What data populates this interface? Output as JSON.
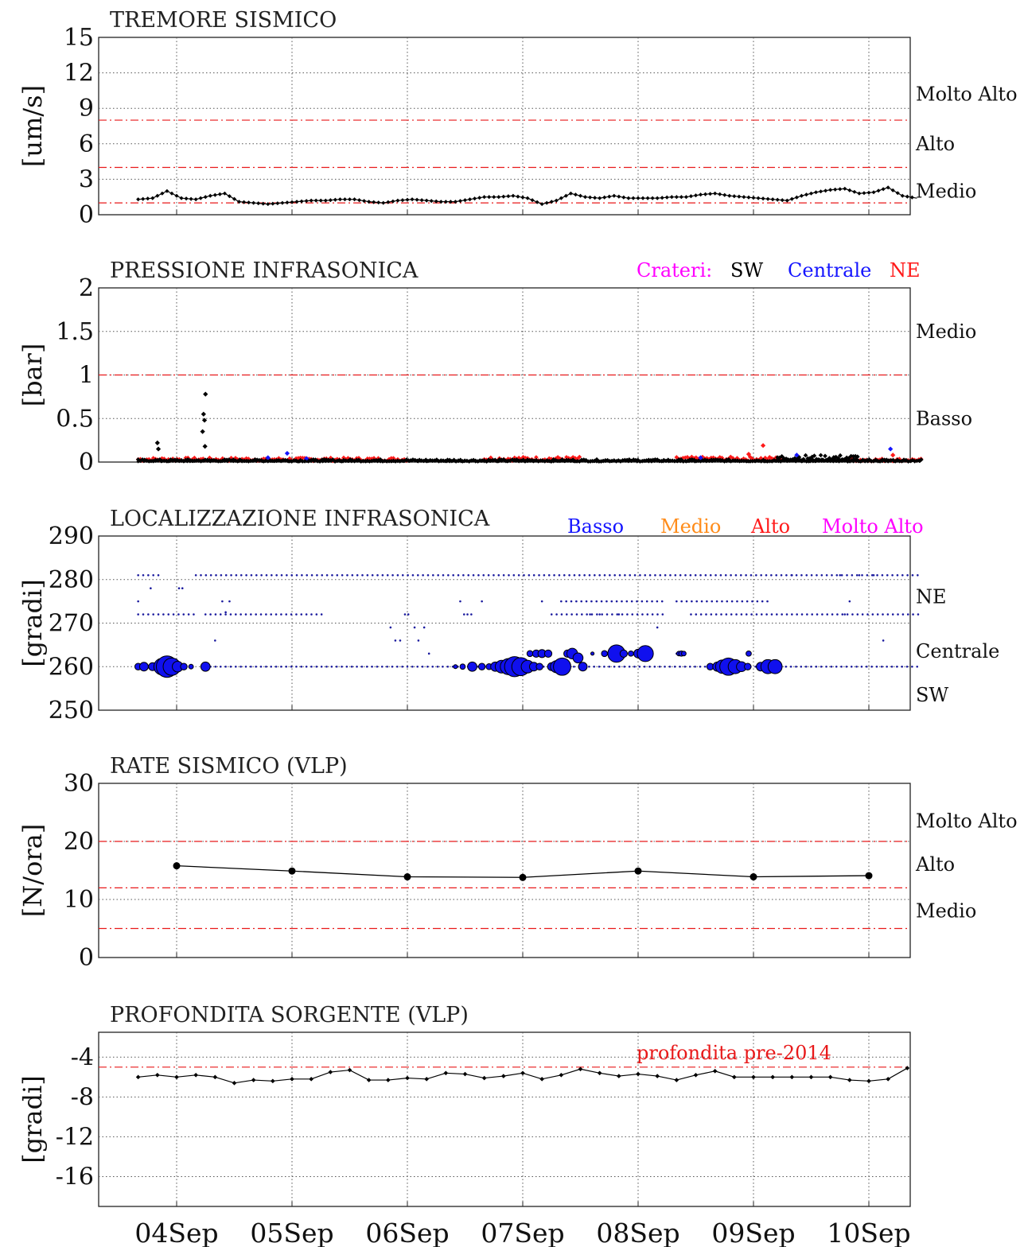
{
  "x_dates": [
    "04Sep",
    "05Sep",
    "06Sep",
    "07Sep",
    "08Sep",
    "09Sep",
    "10Sep"
  ],
  "chart_data": [
    {
      "type": "line",
      "title": "TREMORE SISMICO",
      "ylabel": "[um/s]",
      "ylim": [
        0,
        15
      ],
      "yticks": [
        0,
        3,
        6,
        9,
        12,
        15
      ],
      "yticklabels": [
        "0",
        "3",
        "6",
        "9",
        "12",
        "15"
      ],
      "xlim": [
        "03Sep 16:00",
        "10Sep 09:00"
      ],
      "thresholds": [
        1,
        4,
        8
      ],
      "threshold_color": "#e8191a",
      "levels": [
        {
          "label": "Molto Alto",
          "value": 10.2
        },
        {
          "label": "Alto",
          "value": 6
        },
        {
          "label": "Medio",
          "value": 2
        }
      ],
      "series": [
        {
          "color": "#000000",
          "x_hours": [
            0,
            3,
            6,
            9,
            12,
            15,
            18,
            21,
            24,
            27,
            30,
            33,
            36,
            39,
            42,
            45,
            48,
            51,
            54,
            57,
            60,
            63,
            66,
            69,
            72,
            75,
            78,
            81,
            84,
            87,
            90,
            93,
            96,
            99,
            102,
            105,
            108,
            111,
            114,
            117,
            120,
            123,
            126,
            129,
            132,
            135,
            138,
            141,
            144,
            147,
            150,
            153,
            156,
            159,
            162
          ],
          "values": [
            1.3,
            1.4,
            2.0,
            1.4,
            1.3,
            1.6,
            1.8,
            1.1,
            1.0,
            0.9,
            1.0,
            1.1,
            1.2,
            1.2,
            1.3,
            1.3,
            1.1,
            1.0,
            1.2,
            1.3,
            1.2,
            1.1,
            1.1,
            1.3,
            1.5,
            1.5,
            1.6,
            1.4,
            0.9,
            1.2,
            1.8,
            1.5,
            1.4,
            1.6,
            1.4,
            1.4,
            1.4,
            1.5,
            1.5,
            1.7,
            1.8,
            1.6,
            1.5,
            1.4,
            1.3,
            1.2,
            1.6,
            1.9,
            2.1,
            2.2,
            1.8,
            1.9,
            2.3,
            1.6,
            1.4
          ]
        }
      ]
    },
    {
      "type": "scatter",
      "title": "PRESSIONE INFRASONICA",
      "ylabel": "[bar]",
      "ylim": [
        0,
        2
      ],
      "yticks": [
        0,
        0.5,
        1,
        1.5,
        2
      ],
      "yticklabels": [
        "0",
        "0.5",
        "1",
        "1.5",
        "2"
      ],
      "thresholds": [
        1
      ],
      "threshold_color": "#e8191a",
      "levels": [
        {
          "label": "Medio",
          "value": 1.5
        },
        {
          "label": "Basso",
          "value": 0.5
        }
      ],
      "legend": {
        "title": "Crateri:",
        "title_color": "#ff00ff",
        "placement": "top-right",
        "items": [
          {
            "label": "SW",
            "color": "#000000"
          },
          {
            "label": "Centrale",
            "color": "#1414ff"
          },
          {
            "label": "NE",
            "color": "#ff1a1a"
          }
        ]
      },
      "series": [
        {
          "name": "NE",
          "color": "#ff1a1a",
          "segments": [
            {
              "from_hour": 0,
              "to_hour": 56,
              "max": 0.05
            },
            {
              "from_hour": 72,
              "to_hour": 92,
              "max": 0.06
            },
            {
              "from_hour": 112,
              "to_hour": 134,
              "max": 0.06
            },
            {
              "from_hour": 148,
              "to_hour": 163,
              "max": 0.04
            }
          ],
          "peaks": [
            {
              "x_hour": 130,
              "value": 0.19
            },
            {
              "x_hour": 127,
              "value": 0.09
            },
            {
              "x_hour": 157,
              "value": 0.08
            }
          ]
        },
        {
          "name": "SW",
          "color": "#000000",
          "segments": [
            {
              "from_hour": 0,
              "to_hour": 163,
              "max": 0.03
            },
            {
              "from_hour": 133,
              "to_hour": 150,
              "max": 0.08
            }
          ],
          "peaks": [
            {
              "x_hour": 14,
              "value": 0.78
            },
            {
              "x_hour": 13.6,
              "value": 0.55
            },
            {
              "x_hour": 13.8,
              "value": 0.48
            },
            {
              "x_hour": 13.4,
              "value": 0.35
            },
            {
              "x_hour": 13.9,
              "value": 0.18
            },
            {
              "x_hour": 4,
              "value": 0.22
            },
            {
              "x_hour": 4.2,
              "value": 0.15
            }
          ]
        },
        {
          "name": "Centrale",
          "color": "#1414ff",
          "peaks": [
            {
              "x_hour": 31,
              "value": 0.1
            },
            {
              "x_hour": 27,
              "value": 0.05
            },
            {
              "x_hour": 35,
              "value": 0.04
            },
            {
              "x_hour": 117,
              "value": 0.05
            },
            {
              "x_hour": 137,
              "value": 0.08
            },
            {
              "x_hour": 156.5,
              "value": 0.15
            }
          ]
        }
      ]
    },
    {
      "type": "scatter",
      "title": "LOCALIZZAZIONE INFRASONICA",
      "ylabel": "[gradi]",
      "ylim": [
        250,
        290
      ],
      "yticks": [
        250,
        260,
        270,
        280,
        290
      ],
      "yticklabels": [
        "250",
        "260",
        "270",
        "280",
        "290"
      ],
      "levels": [
        {
          "label": "NE",
          "value": 276
        },
        {
          "label": "Centrale",
          "value": 263.5
        },
        {
          "label": "SW",
          "value": 253.5
        }
      ],
      "legend": {
        "placement": "top-right",
        "items": [
          {
            "label": "Basso",
            "color": "#1414ff"
          },
          {
            "label": "Medio",
            "color": "#ff8c1a"
          },
          {
            "label": "Alto",
            "color": "#ff1a1a"
          },
          {
            "label": "Molto Alto",
            "color": "#ff00ff"
          }
        ]
      },
      "rows": [
        {
          "value": 281,
          "ranges": [
            [
              0,
              4.5
            ],
            [
              12,
              163
            ]
          ]
        },
        {
          "value": 272,
          "ranges": [
            [
              0,
              12
            ],
            [
              14,
              39
            ],
            [
              86,
              110
            ],
            [
              115,
              163
            ]
          ]
        },
        {
          "value": 260,
          "ranges": [
            [
              14,
              163
            ]
          ]
        },
        {
          "value": 275,
          "ranges": [
            [
              88,
              110
            ],
            [
              112,
              131
            ]
          ]
        }
      ],
      "bubbles": [
        {
          "x_hour": 0,
          "value": 260,
          "size": 1.0
        },
        {
          "x_hour": 1.2,
          "value": 260,
          "size": 1.3
        },
        {
          "x_hour": 3,
          "value": 260,
          "size": 1.2
        },
        {
          "x_hour": 5,
          "value": 260,
          "size": 2.5
        },
        {
          "x_hour": 6,
          "value": 260,
          "size": 3.2
        },
        {
          "x_hour": 7,
          "value": 260,
          "size": 2.6
        },
        {
          "x_hour": 8.2,
          "value": 260,
          "size": 1.6
        },
        {
          "x_hour": 9.5,
          "value": 260,
          "size": 1.0
        },
        {
          "x_hour": 11,
          "value": 260,
          "size": 0.7
        },
        {
          "x_hour": 14,
          "value": 260,
          "size": 1.4
        },
        {
          "x_hour": 66,
          "value": 260,
          "size": 0.6
        },
        {
          "x_hour": 67.5,
          "value": 260,
          "size": 0.8
        },
        {
          "x_hour": 69.5,
          "value": 260,
          "size": 1.4
        },
        {
          "x_hour": 71.5,
          "value": 260,
          "size": 1.0
        },
        {
          "x_hour": 73,
          "value": 260,
          "size": 0.9
        },
        {
          "x_hour": 74.3,
          "value": 260,
          "size": 1.4
        },
        {
          "x_hour": 75.6,
          "value": 260,
          "size": 1.9
        },
        {
          "x_hour": 77,
          "value": 260,
          "size": 2.4
        },
        {
          "x_hour": 78.3,
          "value": 260,
          "size": 3.0
        },
        {
          "x_hour": 79.6,
          "value": 260,
          "size": 2.7
        },
        {
          "x_hour": 81,
          "value": 260,
          "size": 1.9
        },
        {
          "x_hour": 82.3,
          "value": 260,
          "size": 1.3
        },
        {
          "x_hour": 83.5,
          "value": 260,
          "size": 1.0
        },
        {
          "x_hour": 81.5,
          "value": 263,
          "size": 0.9
        },
        {
          "x_hour": 82.8,
          "value": 263,
          "size": 1.1
        },
        {
          "x_hour": 84,
          "value": 263,
          "size": 1.2
        },
        {
          "x_hour": 85.3,
          "value": 263,
          "size": 1.1
        },
        {
          "x_hour": 86,
          "value": 260,
          "size": 1.2
        },
        {
          "x_hour": 87,
          "value": 260,
          "size": 1.8
        },
        {
          "x_hour": 88.2,
          "value": 260,
          "size": 2.6
        },
        {
          "x_hour": 89.3,
          "value": 263,
          "size": 1.1
        },
        {
          "x_hour": 90.3,
          "value": 263,
          "size": 1.6
        },
        {
          "x_hour": 91.5,
          "value": 262,
          "size": 1.5
        },
        {
          "x_hour": 92.5,
          "value": 260,
          "size": 1.3
        },
        {
          "x_hour": 94.5,
          "value": 263,
          "size": 0.5
        },
        {
          "x_hour": 97,
          "value": 263,
          "size": 0.9
        },
        {
          "x_hour": 99.5,
          "value": 263,
          "size": 2.6
        },
        {
          "x_hour": 101,
          "value": 263,
          "size": 1.1
        },
        {
          "x_hour": 102.5,
          "value": 263,
          "size": 0.8
        },
        {
          "x_hour": 104,
          "value": 263,
          "size": 1.3
        },
        {
          "x_hour": 105.5,
          "value": 263,
          "size": 2.4
        },
        {
          "x_hour": 112.5,
          "value": 263,
          "size": 0.7
        },
        {
          "x_hour": 113,
          "value": 263,
          "size": 0.8
        },
        {
          "x_hour": 113.5,
          "value": 263,
          "size": 0.7
        },
        {
          "x_hour": 119,
          "value": 260,
          "size": 1.0
        },
        {
          "x_hour": 120.5,
          "value": 260,
          "size": 1.4
        },
        {
          "x_hour": 121.5,
          "value": 260,
          "size": 2.0
        },
        {
          "x_hour": 122.8,
          "value": 260,
          "size": 2.6
        },
        {
          "x_hour": 124.2,
          "value": 260,
          "size": 2.1
        },
        {
          "x_hour": 125.5,
          "value": 260,
          "size": 1.5
        },
        {
          "x_hour": 126.8,
          "value": 260,
          "size": 1.0
        },
        {
          "x_hour": 127,
          "value": 263,
          "size": 0.8
        },
        {
          "x_hour": 129.5,
          "value": 260,
          "size": 1.3
        },
        {
          "x_hour": 131,
          "value": 260,
          "size": 2.1
        },
        {
          "x_hour": 132.5,
          "value": 260,
          "size": 2.1
        }
      ],
      "sparse_points": [
        {
          "x_hour": 0,
          "value": 275
        },
        {
          "x_hour": 2.6,
          "value": 278
        },
        {
          "x_hour": 8.5,
          "value": 278
        },
        {
          "x_hour": 9.2,
          "value": 278
        },
        {
          "x_hour": 16,
          "value": 266
        },
        {
          "x_hour": 17.5,
          "value": 275
        },
        {
          "x_hour": 18.2,
          "value": 272.5
        },
        {
          "x_hour": 19,
          "value": 275
        },
        {
          "x_hour": 52.5,
          "value": 269
        },
        {
          "x_hour": 53.5,
          "value": 266
        },
        {
          "x_hour": 54.5,
          "value": 266
        },
        {
          "x_hour": 55.5,
          "value": 272
        },
        {
          "x_hour": 56.2,
          "value": 272
        },
        {
          "x_hour": 57.5,
          "value": 269
        },
        {
          "x_hour": 58.3,
          "value": 266
        },
        {
          "x_hour": 59.5,
          "value": 269
        },
        {
          "x_hour": 60.5,
          "value": 263
        },
        {
          "x_hour": 67,
          "value": 275
        },
        {
          "x_hour": 67.8,
          "value": 272
        },
        {
          "x_hour": 68.5,
          "value": 272
        },
        {
          "x_hour": 69.3,
          "value": 272
        },
        {
          "x_hour": 71.5,
          "value": 275
        },
        {
          "x_hour": 84,
          "value": 275
        },
        {
          "x_hour": 94,
          "value": 272
        },
        {
          "x_hour": 96,
          "value": 272
        },
        {
          "x_hour": 100,
          "value": 272
        },
        {
          "x_hour": 108,
          "value": 269
        },
        {
          "x_hour": 112,
          "value": 263
        },
        {
          "x_hour": 136,
          "value": 281
        },
        {
          "x_hour": 146,
          "value": 281
        },
        {
          "x_hour": 147,
          "value": 272
        },
        {
          "x_hour": 148,
          "value": 275
        },
        {
          "x_hour": 150,
          "value": 281
        },
        {
          "x_hour": 153,
          "value": 281
        },
        {
          "x_hour": 155,
          "value": 266
        }
      ]
    },
    {
      "type": "line",
      "title": "RATE SISMICO (VLP)",
      "ylabel": "[N/ora]",
      "ylim": [
        0,
        30
      ],
      "yticks": [
        0,
        10,
        20,
        30
      ],
      "yticklabels": [
        "0",
        "10",
        "20",
        "30"
      ],
      "thresholds": [
        5,
        12,
        20
      ],
      "threshold_color": "#e8191a",
      "levels": [
        {
          "label": "Molto Alto",
          "value": 23.5
        },
        {
          "label": "Alto",
          "value": 16
        },
        {
          "label": "Medio",
          "value": 8
        }
      ],
      "series": [
        {
          "color": "#000000",
          "x": [
            "04Sep",
            "05Sep",
            "06Sep",
            "07Sep",
            "08Sep",
            "09Sep",
            "10Sep"
          ],
          "values": [
            15.8,
            14.9,
            13.9,
            13.8,
            14.9,
            13.9,
            14.1
          ]
        }
      ]
    },
    {
      "type": "line",
      "title": "PROFONDITA SORGENTE (VLP)",
      "ylabel": "[gradi]",
      "ylim": [
        -19,
        -1.5
      ],
      "yticks": [
        -4,
        -8,
        -12,
        -16
      ],
      "yticklabels": [
        "-4",
        "-8",
        "-12",
        "-16"
      ],
      "thresholds": [
        -5
      ],
      "threshold_color": "#e8191a",
      "annotation": {
        "text": "profondita pre-2014",
        "color": "#e8191a"
      },
      "series": [
        {
          "color": "#000000",
          "x_hours": [
            0,
            4,
            8,
            12,
            16,
            20,
            24,
            28,
            32,
            36,
            40,
            44,
            48,
            52,
            56,
            60,
            64,
            68,
            72,
            76,
            80,
            84,
            88,
            92,
            96,
            100,
            104,
            108,
            112,
            116,
            120,
            124,
            128,
            132,
            136,
            140,
            144,
            148,
            152,
            156,
            160
          ],
          "values": [
            -6.0,
            -5.8,
            -6.0,
            -5.8,
            -6.0,
            -6.6,
            -6.3,
            -6.4,
            -6.2,
            -6.2,
            -5.5,
            -5.3,
            -6.3,
            -6.3,
            -6.1,
            -6.2,
            -5.6,
            -5.7,
            -6.1,
            -5.9,
            -5.6,
            -6.2,
            -5.8,
            -5.2,
            -5.6,
            -5.9,
            -5.7,
            -5.9,
            -6.3,
            -5.8,
            -5.4,
            -6.0,
            -6.0,
            -6.0,
            -6.0,
            -6.0,
            -6.0,
            -6.3,
            -6.4,
            -6.2,
            -5.1
          ]
        }
      ]
    }
  ]
}
